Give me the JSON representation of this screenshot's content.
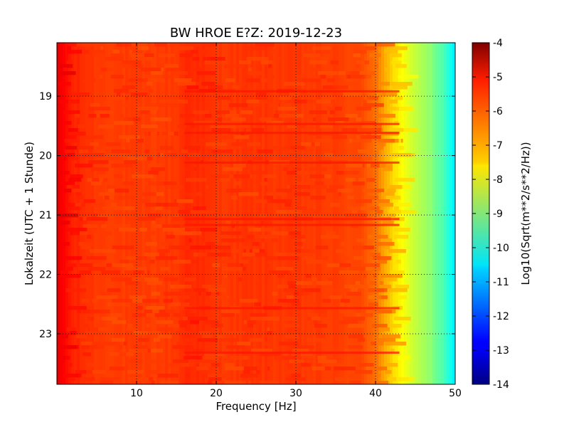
{
  "chart_data": {
    "type": "heatmap",
    "title": "BW HROE E?Z: 2019-12-23",
    "xlabel": "Frequency [Hz]",
    "ylabel": "Lokalzeit (UTC + 1 Stunde)",
    "xlim": [
      0,
      50
    ],
    "ylim": [
      18.1,
      23.85
    ],
    "y_inverted": true,
    "x_ticks": [
      "10",
      "20",
      "30",
      "40",
      "50"
    ],
    "y_ticks": [
      "19",
      "20",
      "21",
      "22",
      "23"
    ],
    "grid": true,
    "colormap": "jet",
    "colorbar": {
      "label": "Log10(Sqrt(m**2/s**2/Hz))",
      "range": [
        -14,
        -4
      ],
      "ticks": [
        "-4",
        "-5",
        "-6",
        "-7",
        "-8",
        "-9",
        "-10",
        "-11",
        "-12",
        "-13",
        "-14"
      ]
    },
    "spectral_profile": {
      "frequency_hz": [
        0,
        1,
        2,
        5,
        10,
        15,
        16.5,
        17.5,
        20,
        25,
        30,
        35,
        38,
        40,
        41,
        42,
        43,
        44,
        45,
        46,
        47,
        48,
        49,
        50
      ],
      "log10_amplitude": [
        -5.0,
        -5.3,
        -5.6,
        -5.8,
        -5.85,
        -5.8,
        -5.6,
        -5.65,
        -5.8,
        -5.75,
        -5.8,
        -5.85,
        -5.95,
        -6.3,
        -6.8,
        -7.3,
        -7.7,
        -8.0,
        -8.3,
        -8.6,
        -8.9,
        -9.3,
        -9.8,
        -10.5
      ]
    },
    "horizontal_bands_local_hour": [
      18.9,
      19.45,
      19.6,
      20.1,
      21.05,
      21.15,
      22.55,
      23.3
    ]
  }
}
